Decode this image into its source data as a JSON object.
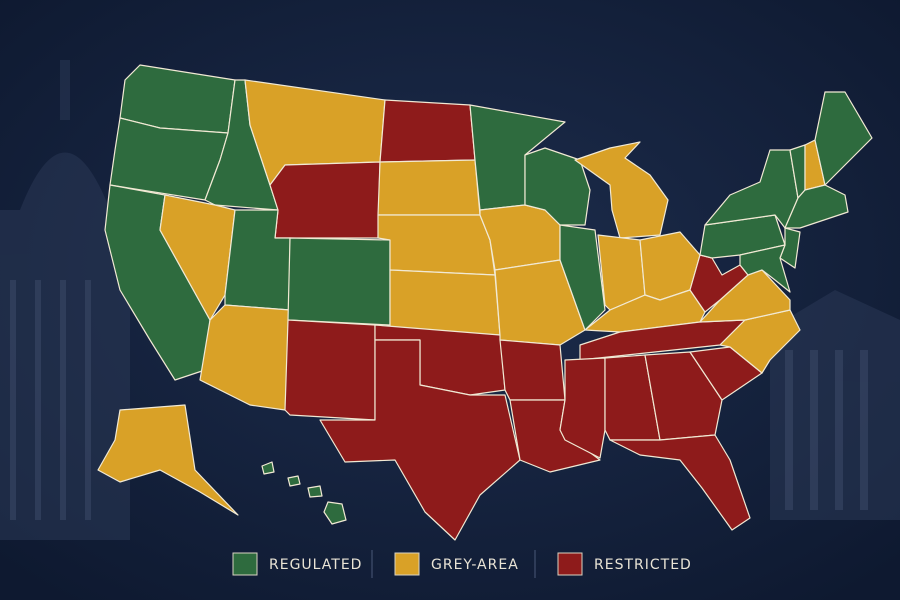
{
  "legend": {
    "items": [
      {
        "label": "REGULATED",
        "color": "#2e6b3e"
      },
      {
        "label": "GREY-AREA",
        "color": "#d9a127"
      },
      {
        "label": "RESTRICTED",
        "color": "#8e1b1b"
      }
    ]
  }
}
